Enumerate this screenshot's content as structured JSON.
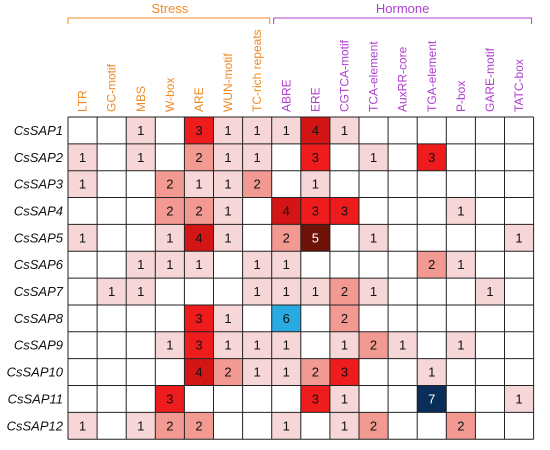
{
  "colors": {
    "stress": "#F08A24",
    "hormone": "#B040D0",
    "grid": "#222222",
    "scale": {
      "0": "#FFFFFF",
      "1": "#F6D6D6",
      "2": "#F29A92",
      "3": "#EE1C1C",
      "4": "#D31515",
      "5": "#6E1208",
      "6": "#29ABE2",
      "7": "#0A2E5A"
    }
  },
  "chart_data": {
    "type": "heatmap",
    "groups": [
      {
        "name": "Stress",
        "columns": [
          0,
          6
        ]
      },
      {
        "name": "Hormone",
        "columns": [
          7,
          15
        ]
      }
    ],
    "columns": [
      "LTR",
      "GC-motif",
      "MBS",
      "W-box",
      "ARE",
      "WUN-motif",
      "TC-rich repeats",
      "ABRE",
      "ERE",
      "CGTCA-motif",
      "TCA-element",
      "AuxRR-core",
      "TGA-element",
      "P-box",
      "GARE-motif",
      "TATC-box"
    ],
    "rows": [
      "CsSAP1",
      "CsSAP2",
      "CsSAP3",
      "CsSAP4",
      "CsSAP5",
      "CsSAP6",
      "CsSAP7",
      "CsSAP8",
      "CsSAP9",
      "CsSAP10",
      "CsSAP11",
      "CsSAP12"
    ],
    "values": [
      [
        0,
        0,
        1,
        0,
        3,
        1,
        1,
        1,
        4,
        1,
        0,
        0,
        0,
        0,
        0,
        0
      ],
      [
        1,
        0,
        1,
        0,
        2,
        1,
        1,
        0,
        3,
        0,
        1,
        0,
        3,
        0,
        0,
        0
      ],
      [
        1,
        0,
        0,
        2,
        1,
        1,
        2,
        0,
        1,
        0,
        0,
        0,
        0,
        0,
        0,
        0
      ],
      [
        0,
        0,
        0,
        2,
        2,
        1,
        0,
        4,
        3,
        3,
        0,
        0,
        0,
        1,
        0,
        0
      ],
      [
        1,
        0,
        0,
        1,
        4,
        1,
        0,
        2,
        5,
        0,
        1,
        0,
        0,
        0,
        0,
        1
      ],
      [
        0,
        0,
        1,
        1,
        1,
        0,
        1,
        1,
        0,
        0,
        0,
        0,
        2,
        1,
        0,
        0
      ],
      [
        0,
        1,
        1,
        0,
        0,
        0,
        1,
        1,
        1,
        2,
        1,
        0,
        0,
        0,
        1,
        0
      ],
      [
        0,
        0,
        0,
        0,
        3,
        1,
        0,
        6,
        0,
        2,
        0,
        0,
        0,
        0,
        0,
        0
      ],
      [
        0,
        0,
        0,
        1,
        3,
        1,
        1,
        1,
        0,
        1,
        2,
        1,
        0,
        1,
        0,
        0
      ],
      [
        0,
        0,
        0,
        0,
        4,
        2,
        1,
        1,
        2,
        3,
        0,
        0,
        1,
        0,
        0,
        0
      ],
      [
        0,
        0,
        0,
        3,
        0,
        0,
        0,
        0,
        3,
        1,
        0,
        0,
        7,
        0,
        0,
        1
      ],
      [
        1,
        0,
        1,
        2,
        2,
        0,
        0,
        1,
        0,
        1,
        2,
        0,
        0,
        2,
        0,
        0
      ]
    ]
  }
}
